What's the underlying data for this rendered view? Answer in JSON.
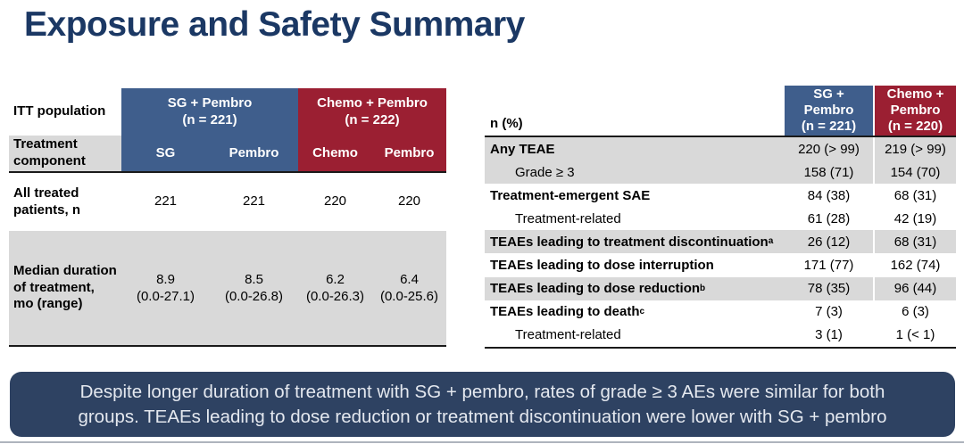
{
  "title": "Exposure and Safety Summary",
  "colors": {
    "title_navy": "#1B3864",
    "arm_blue": "#3F5E8C",
    "arm_red": "#9B1F32",
    "row_gray": "#D9D9D9",
    "callout_bg": "#2E4262"
  },
  "exposure_table": {
    "corner_label": "ITT population",
    "component_label": "Treatment component",
    "arm_headers": [
      {
        "name": "SG + Pembro\n(n = 221)"
      },
      {
        "name": "Chemo + Pembro\n(n = 222)"
      }
    ],
    "components": [
      "SG",
      "Pembro",
      "Chemo",
      "Pembro"
    ],
    "all_treated": {
      "label": "All treated patients, n",
      "values": [
        "221",
        "221",
        "220",
        "220"
      ]
    },
    "median_duration": {
      "label": "Median duration of treatment, mo (range)",
      "values": [
        "8.9",
        "8.5",
        "6.2",
        "6.4"
      ],
      "ranges": [
        "(0.0-27.1)",
        "(0.0-26.8)",
        "(0.0-26.3)",
        "(0.0-25.6)"
      ]
    }
  },
  "safety_table": {
    "header_label": "n (%)",
    "arm_headers": [
      {
        "name": "SG +\nPembro\n(n = 221)"
      },
      {
        "name": "Chemo +\nPembro\n(n = 220)"
      }
    ],
    "rows": [
      {
        "label": "Any TEAE",
        "sup": "",
        "sg": "220 (> 99)",
        "chemo": "219 (> 99)"
      },
      {
        "label": "Grade ≥ 3",
        "sup": "",
        "sg": "158 (71)",
        "chemo": "154 (70)"
      },
      {
        "label": "Treatment-emergent SAE",
        "sup": "",
        "sg": "84 (38)",
        "chemo": "68 (31)"
      },
      {
        "label": "Treatment-related",
        "sup": "",
        "sg": "61 (28)",
        "chemo": "42 (19)"
      },
      {
        "label": "TEAEs leading to treatment discontinuation",
        "sup": "a",
        "sg": "26 (12)",
        "chemo": "68 (31)"
      },
      {
        "label": "TEAEs leading to dose interruption",
        "sup": "",
        "sg": "171 (77)",
        "chemo": "162 (74)"
      },
      {
        "label": "TEAEs leading to dose reduction",
        "sup": "b",
        "sg": "78 (35)",
        "chemo": "96 (44)"
      },
      {
        "label": "TEAEs leading to death",
        "sup": "c",
        "sg": "7 (3)",
        "chemo": "6 (3)"
      },
      {
        "label": "Treatment-related",
        "sup": "",
        "sg": "3 (1)",
        "chemo": "1 (< 1)"
      }
    ]
  },
  "callout": {
    "text": "Despite longer duration of treatment with SG + pembro, rates of grade ≥ 3 AEs were similar for both groups. TEAEs leading to dose reduction or treatment discontinuation were lower with SG + pembro"
  }
}
